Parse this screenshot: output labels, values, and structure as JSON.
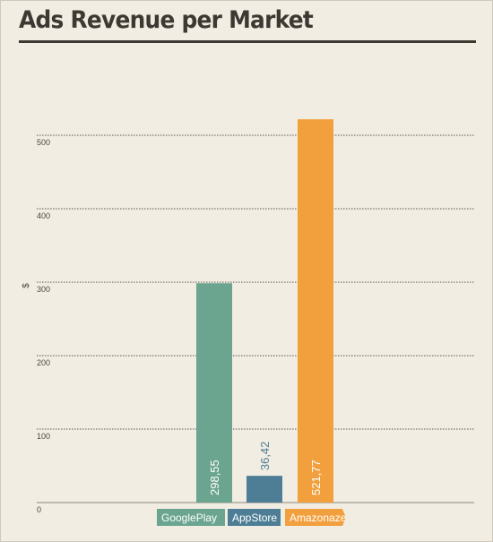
{
  "chart_data": {
    "type": "bar",
    "title": "Ads Revenue per Market",
    "xlabel": "",
    "ylabel": "$",
    "ylim": [
      0,
      500
    ],
    "yticks": [
      0,
      100,
      200,
      300,
      400,
      500
    ],
    "grid": true,
    "categories": [
      "GooglePlay",
      "AppStore",
      "Amazon"
    ],
    "category_tags": [
      "GooglePlay",
      "AppStore",
      "Amazonaze"
    ],
    "values": [
      298.55,
      36.42,
      521.77
    ],
    "value_labels": [
      "298,55",
      "36,42",
      "521,77"
    ],
    "colors": [
      "#6ba590",
      "#4d7e95",
      "#f2a03d"
    ],
    "value_label_colors": [
      "#ffffff",
      "#4d7e95",
      "#ffffff"
    ]
  }
}
